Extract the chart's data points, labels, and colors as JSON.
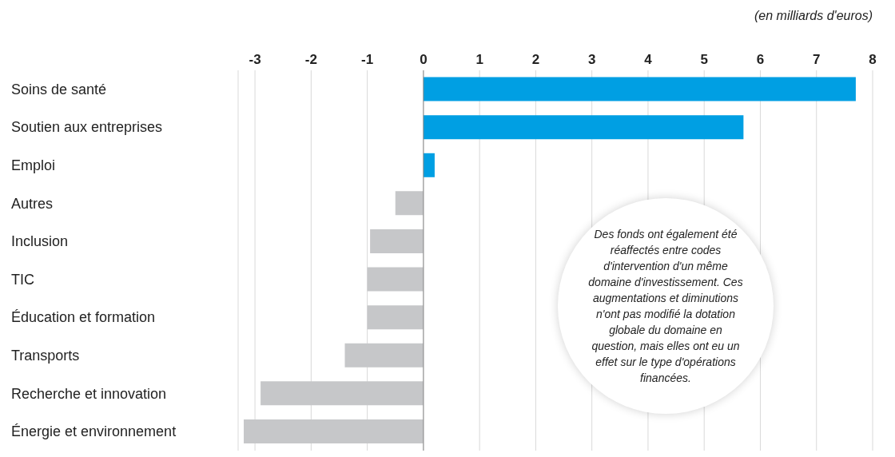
{
  "chart_data": {
    "type": "bar",
    "orientation": "horizontal",
    "xlabel": "(en milliards d'euros)",
    "categories": [
      "Soins de santé",
      "Soutien aux entreprises",
      "Emploi",
      "Autres",
      "Inclusion",
      "TIC",
      "Éducation et formation",
      "Transports",
      "Recherche et innovation",
      "Énergie et environnement"
    ],
    "values": [
      7.7,
      5.7,
      0.2,
      -0.5,
      -0.95,
      -1.0,
      -1.0,
      -1.4,
      -2.9,
      -3.2
    ],
    "colors": [
      "#009fe3",
      "#009fe3",
      "#009fe3",
      "#c6c7c9",
      "#c6c7c9",
      "#c6c7c9",
      "#c6c7c9",
      "#c6c7c9",
      "#c6c7c9",
      "#c6c7c9"
    ],
    "xlim": [
      -3.3,
      8
    ],
    "xticks": [
      -3,
      -2,
      -1,
      0,
      1,
      2,
      3,
      4,
      5,
      6,
      7,
      8
    ],
    "grid": "x",
    "annotations": [
      "Des fonds ont également été réaffectés entre codes d'intervention d'un même domaine d'investissement. Ces augmentations et diminutions n'ont pas modifié la dotation globale du domaine en question, mais elles ont eu un effet sur le type d'opérations financées."
    ]
  }
}
